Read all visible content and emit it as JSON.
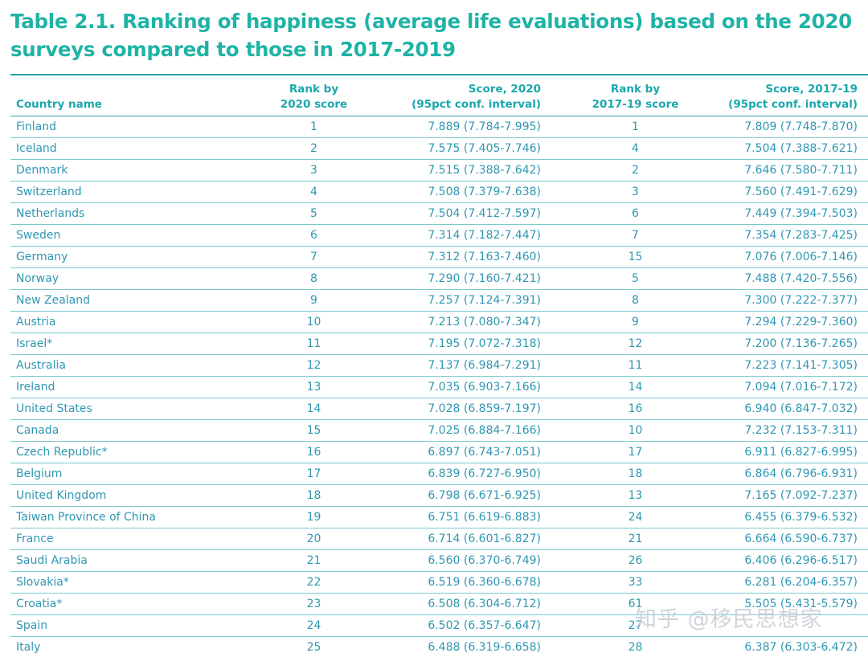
{
  "title": "Table 2.1. Ranking of happiness (average life evaluations) based on the 2020 surveys compared to those in 2017-2019",
  "colors": {
    "title": "#1fb3a6",
    "header": "#1aa7ad",
    "text": "#2f97b2",
    "rule": "#2aa3a8"
  },
  "table": {
    "headers": {
      "country": "Country name",
      "rank2020_line1": "Rank by",
      "rank2020_line2": "2020 score",
      "score2020_line1": "Score, 2020",
      "score2020_line2": "(95pct conf. interval)",
      "rank1719_line1": "Rank by",
      "rank1719_line2": "2017-19 score",
      "score1719_line1": "Score, 2017-19",
      "score1719_line2": "(95pct conf. interval)"
    },
    "rows": [
      {
        "country": "Finland",
        "rank2020": "1",
        "score2020": "7.889 (7.784-7.995)",
        "rank1719": "1",
        "score1719": "7.809 (7.748-7.870)"
      },
      {
        "country": "Iceland",
        "rank2020": "2",
        "score2020": "7.575 (7.405-7.746)",
        "rank1719": "4",
        "score1719": "7.504 (7.388-7.621)"
      },
      {
        "country": "Denmark",
        "rank2020": "3",
        "score2020": "7.515 (7.388-7.642)",
        "rank1719": "2",
        "score1719": "7.646 (7.580-7.711)"
      },
      {
        "country": "Switzerland",
        "rank2020": "4",
        "score2020": "7.508 (7.379-7.638)",
        "rank1719": "3",
        "score1719": "7.560 (7.491-7.629)"
      },
      {
        "country": "Netherlands",
        "rank2020": "5",
        "score2020": "7.504 (7.412-7.597)",
        "rank1719": "6",
        "score1719": "7.449 (7.394-7.503)"
      },
      {
        "country": "Sweden",
        "rank2020": "6",
        "score2020": "7.314 (7.182-7.447)",
        "rank1719": "7",
        "score1719": "7.354 (7.283-7.425)"
      },
      {
        "country": "Germany",
        "rank2020": "7",
        "score2020": "7.312 (7.163-7.460)",
        "rank1719": "15",
        "score1719": "7.076 (7.006-7.146)"
      },
      {
        "country": "Norway",
        "rank2020": "8",
        "score2020": "7.290 (7.160-7.421)",
        "rank1719": "5",
        "score1719": "7.488 (7.420-7.556)"
      },
      {
        "country": "New Zealand",
        "rank2020": "9",
        "score2020": "7.257 (7.124-7.391)",
        "rank1719": "8",
        "score1719": "7.300 (7.222-7.377)"
      },
      {
        "country": "Austria",
        "rank2020": "10",
        "score2020": "7.213 (7.080-7.347)",
        "rank1719": "9",
        "score1719": "7.294 (7.229-7.360)"
      },
      {
        "country": "Israel*",
        "rank2020": "11",
        "score2020": "7.195 (7.072-7.318)",
        "rank1719": "12",
        "score1719": "7.200 (7.136-7.265)"
      },
      {
        "country": "Australia",
        "rank2020": "12",
        "score2020": "7.137 (6.984-7.291)",
        "rank1719": "11",
        "score1719": "7.223 (7.141-7.305)"
      },
      {
        "country": "Ireland",
        "rank2020": "13",
        "score2020": "7.035 (6.903-7.166)",
        "rank1719": "14",
        "score1719": "7.094 (7.016-7.172)"
      },
      {
        "country": "United States",
        "rank2020": "14",
        "score2020": "7.028 (6.859-7.197)",
        "rank1719": "16",
        "score1719": "6.940 (6.847-7.032)"
      },
      {
        "country": "Canada",
        "rank2020": "15",
        "score2020": "7.025 (6.884-7.166)",
        "rank1719": "10",
        "score1719": "7.232 (7.153-7.311)"
      },
      {
        "country": "Czech Republic*",
        "rank2020": "16",
        "score2020": "6.897 (6.743-7.051)",
        "rank1719": "17",
        "score1719": "6.911 (6.827-6.995)"
      },
      {
        "country": "Belgium",
        "rank2020": "17",
        "score2020": "6.839 (6.727-6.950)",
        "rank1719": "18",
        "score1719": "6.864 (6.796-6.931)"
      },
      {
        "country": "United Kingdom",
        "rank2020": "18",
        "score2020": "6.798 (6.671-6.925)",
        "rank1719": "13",
        "score1719": "7.165 (7.092-7.237)"
      },
      {
        "country": "Taiwan Province of China",
        "rank2020": "19",
        "score2020": "6.751 (6.619-6.883)",
        "rank1719": "24",
        "score1719": "6.455 (6.379-6.532)"
      },
      {
        "country": "France",
        "rank2020": "20",
        "score2020": "6.714 (6.601-6.827)",
        "rank1719": "21",
        "score1719": "6.664 (6.590-6.737)"
      },
      {
        "country": "Saudi Arabia",
        "rank2020": "21",
        "score2020": "6.560 (6.370-6.749)",
        "rank1719": "26",
        "score1719": "6.406 (6.296-6.517)"
      },
      {
        "country": "Slovakia*",
        "rank2020": "22",
        "score2020": "6.519 (6.360-6.678)",
        "rank1719": "33",
        "score1719": "6.281 (6.204-6.357)"
      },
      {
        "country": "Croatia*",
        "rank2020": "23",
        "score2020": "6.508 (6.304-6.712)",
        "rank1719": "61",
        "score1719": "5.505 (5.431-5.579)"
      },
      {
        "country": "Spain",
        "rank2020": "24",
        "score2020": "6.502 (6.357-6.647)",
        "rank1719": "27",
        "score1719": ""
      },
      {
        "country": "Italy",
        "rank2020": "25",
        "score2020": "6.488 (6.319-6.658)",
        "rank1719": "28",
        "score1719": "6.387 (6.303-6.472)"
      }
    ]
  },
  "watermark": "知乎 @移民思想家"
}
